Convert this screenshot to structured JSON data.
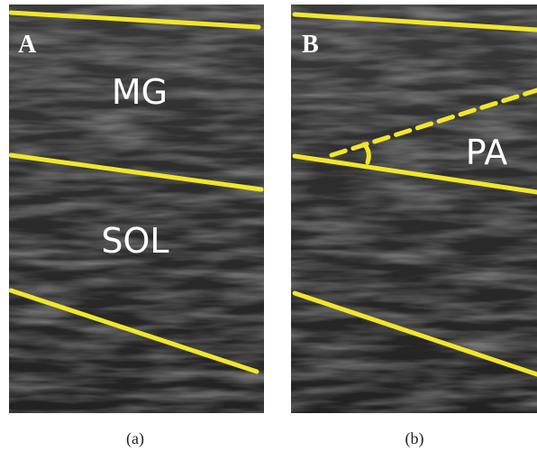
{
  "panels": [
    {
      "letter": "A",
      "caption": "(a)",
      "labels": [
        "MG",
        "SOL"
      ]
    },
    {
      "letter": "B",
      "caption": "(b)",
      "labels": [
        "PA"
      ]
    }
  ]
}
